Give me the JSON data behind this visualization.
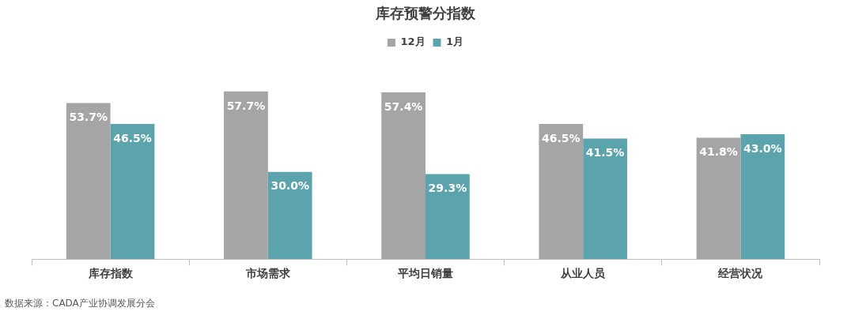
{
  "chart_data": {
    "type": "bar",
    "title": "库存预警分指数",
    "categories": [
      "库存指数",
      "市场需求",
      "平均日销量",
      "从业人员",
      "经营状况"
    ],
    "series": [
      {
        "name": "12月",
        "color": "#a5a5a5",
        "values": [
          53.7,
          57.7,
          57.4,
          46.5,
          41.8
        ],
        "value_labels": [
          "53.7%",
          "57.7%",
          "57.4%",
          "46.5%",
          "41.8%"
        ]
      },
      {
        "name": "1月",
        "color": "#5ba3ad",
        "values": [
          46.5,
          30.0,
          29.3,
          41.5,
          43.0
        ],
        "value_labels": [
          "46.5%",
          "30.0%",
          "29.3%",
          "41.5%",
          "43.0%"
        ]
      }
    ],
    "legend": "top",
    "grid": false,
    "annotations": [
      "数据来源：CADA产业协调发展分会"
    ]
  }
}
